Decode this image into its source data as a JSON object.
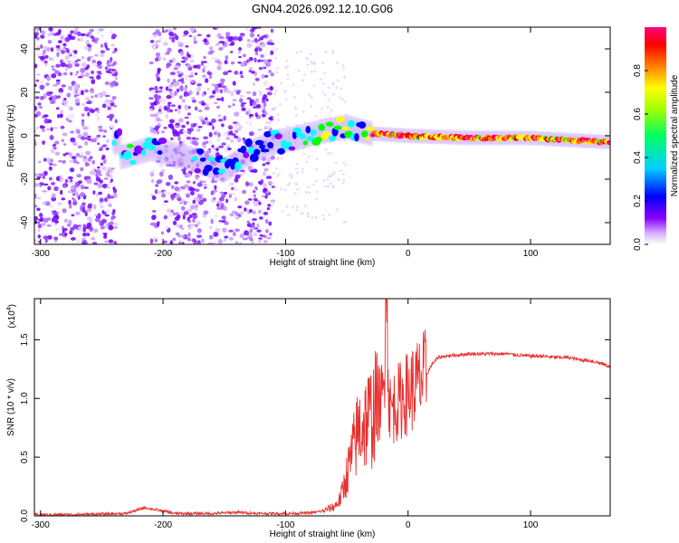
{
  "title": "GN04.2026.092.12.10.G06",
  "colors": {
    "snr_line": "#e8302e",
    "colormap": [
      "#ffffff",
      "#8a00ff",
      "#0000ff",
      "#00ffff",
      "#00ff00",
      "#ffff00",
      "#ff8000",
      "#ff0000",
      "#ff0080"
    ]
  },
  "chart_data": [
    {
      "type": "heatmap",
      "xlabel": "Height of straight line (km)",
      "ylabel": "Frequency (Hz)",
      "xlim": [
        -305,
        165
      ],
      "ylim": [
        -50,
        50
      ],
      "xticks": [
        -300,
        -200,
        -100,
        0,
        100
      ],
      "yticks": [
        -40,
        -20,
        0,
        20,
        40
      ],
      "grid": false,
      "colorbar": {
        "label": "Normalized spectral amplitude",
        "range": [
          0,
          1
        ],
        "ticks": [
          0.0,
          0.2,
          0.4,
          0.6,
          0.8
        ]
      },
      "ridge": {
        "description_points": [
          {
            "x": -235,
            "y": -10
          },
          {
            "x": -210,
            "y": -6
          },
          {
            "x": -180,
            "y": -10
          },
          {
            "x": -150,
            "y": -16
          },
          {
            "x": -130,
            "y": -8
          },
          {
            "x": -110,
            "y": -3
          },
          {
            "x": -90,
            "y": -1
          },
          {
            "x": -70,
            "y": 2
          },
          {
            "x": -50,
            "y": 4
          },
          {
            "x": -30,
            "y": 1
          },
          {
            "x": 0,
            "y": 0
          },
          {
            "x": 50,
            "y": -1
          },
          {
            "x": 100,
            "y": -1
          },
          {
            "x": 165,
            "y": -3
          }
        ]
      },
      "noise_regions": [
        {
          "xmin": -305,
          "xmax": -238
        },
        {
          "xmin": -210,
          "xmax": -110
        }
      ]
    },
    {
      "type": "line",
      "xlabel": "Height of straight line (km)",
      "ylabel": "SNR (10 * v/v)",
      "yscale_label": "(x10",
      "yscale_exp": "4",
      "xlim": [
        -305,
        165
      ],
      "ylim": [
        0,
        1.85
      ],
      "xticks": [
        -300,
        -200,
        -100,
        0,
        100
      ],
      "yticks": [
        0.0,
        0.5,
        1.0,
        1.5
      ],
      "grid": false,
      "series": [
        {
          "values_description": "SNR vs height (x10^4)",
          "x": [
            -305,
            -280,
            -250,
            -230,
            -215,
            -205,
            -190,
            -160,
            -140,
            -120,
            -100,
            -80,
            -70,
            -60,
            -55,
            -50,
            -45,
            -40,
            -35,
            -30,
            -25,
            -20,
            -18,
            -15,
            -10,
            -5,
            0,
            5,
            10,
            15,
            20,
            25,
            30,
            40,
            50,
            60,
            70,
            80,
            90,
            100,
            110,
            120,
            130,
            140,
            150,
            160,
            165
          ],
          "y": [
            0.01,
            0.01,
            0.015,
            0.02,
            0.07,
            0.05,
            0.02,
            0.02,
            0.03,
            0.02,
            0.02,
            0.025,
            0.04,
            0.08,
            0.15,
            0.35,
            0.55,
            0.75,
            0.8,
            0.85,
            0.95,
            1.0,
            1.85,
            0.9,
            0.95,
            1.0,
            1.05,
            1.1,
            1.15,
            1.2,
            1.3,
            1.35,
            1.36,
            1.37,
            1.38,
            1.38,
            1.38,
            1.38,
            1.37,
            1.36,
            1.36,
            1.35,
            1.35,
            1.33,
            1.32,
            1.29,
            1.27
          ]
        }
      ]
    }
  ]
}
